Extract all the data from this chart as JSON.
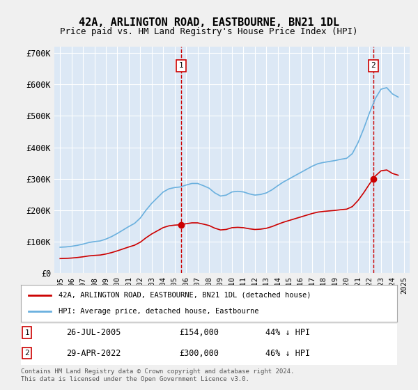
{
  "title": "42A, ARLINGTON ROAD, EASTBOURNE, BN21 1DL",
  "subtitle": "Price paid vs. HM Land Registry's House Price Index (HPI)",
  "footer": "Contains HM Land Registry data © Crown copyright and database right 2024.\nThis data is licensed under the Open Government Licence v3.0.",
  "legend_line1": "42A, ARLINGTON ROAD, EASTBOURNE, BN21 1DL (detached house)",
  "legend_line2": "HPI: Average price, detached house, Eastbourne",
  "annotation1": {
    "label": "1",
    "date": "26-JUL-2005",
    "price": "£154,000",
    "note": "44% ↓ HPI"
  },
  "annotation2": {
    "label": "2",
    "date": "29-APR-2022",
    "price": "£300,000",
    "note": "46% ↓ HPI"
  },
  "hpi_color": "#6ab0de",
  "sale_color": "#cc0000",
  "background_color": "#e8f0f8",
  "plot_bg_color": "#dce8f5",
  "grid_color": "#ffffff",
  "ylim": [
    0,
    720000
  ],
  "yticks": [
    0,
    100000,
    200000,
    300000,
    400000,
    500000,
    600000,
    700000
  ],
  "ytick_labels": [
    "£0",
    "£100K",
    "£200K",
    "£300K",
    "£400K",
    "£500K",
    "£600K",
    "£700K"
  ],
  "sale1_x": 2005.57,
  "sale1_y": 154000,
  "sale2_x": 2022.33,
  "sale2_y": 300000,
  "hpi_years": [
    1995,
    1995.5,
    1996,
    1996.5,
    1997,
    1997.5,
    1998,
    1998.5,
    1999,
    1999.5,
    2000,
    2000.5,
    2001,
    2001.5,
    2002,
    2002.5,
    2003,
    2003.5,
    2004,
    2004.5,
    2005,
    2005.5,
    2006,
    2006.5,
    2007,
    2007.5,
    2008,
    2008.5,
    2009,
    2009.5,
    2010,
    2010.5,
    2011,
    2011.5,
    2012,
    2012.5,
    2013,
    2013.5,
    2014,
    2014.5,
    2015,
    2015.5,
    2016,
    2016.5,
    2017,
    2017.5,
    2018,
    2018.5,
    2019,
    2019.5,
    2020,
    2020.5,
    2021,
    2021.5,
    2022,
    2022.5,
    2023,
    2023.5,
    2024,
    2024.5
  ],
  "hpi_values": [
    82000,
    83000,
    85000,
    88000,
    92000,
    97000,
    100000,
    102000,
    108000,
    116000,
    126000,
    137000,
    148000,
    158000,
    175000,
    200000,
    222000,
    240000,
    258000,
    268000,
    272000,
    274000,
    280000,
    285000,
    285000,
    278000,
    270000,
    255000,
    245000,
    248000,
    258000,
    260000,
    258000,
    252000,
    248000,
    250000,
    255000,
    265000,
    278000,
    290000,
    300000,
    310000,
    320000,
    330000,
    340000,
    348000,
    352000,
    355000,
    358000,
    362000,
    365000,
    380000,
    415000,
    460000,
    510000,
    555000,
    585000,
    590000,
    570000,
    560000
  ],
  "sale_years": [
    1995.3,
    2005.57,
    2022.33
  ],
  "sale_values": [
    55000,
    154000,
    300000
  ],
  "xlim_start": 1994.5,
  "xlim_end": 2025.5
}
